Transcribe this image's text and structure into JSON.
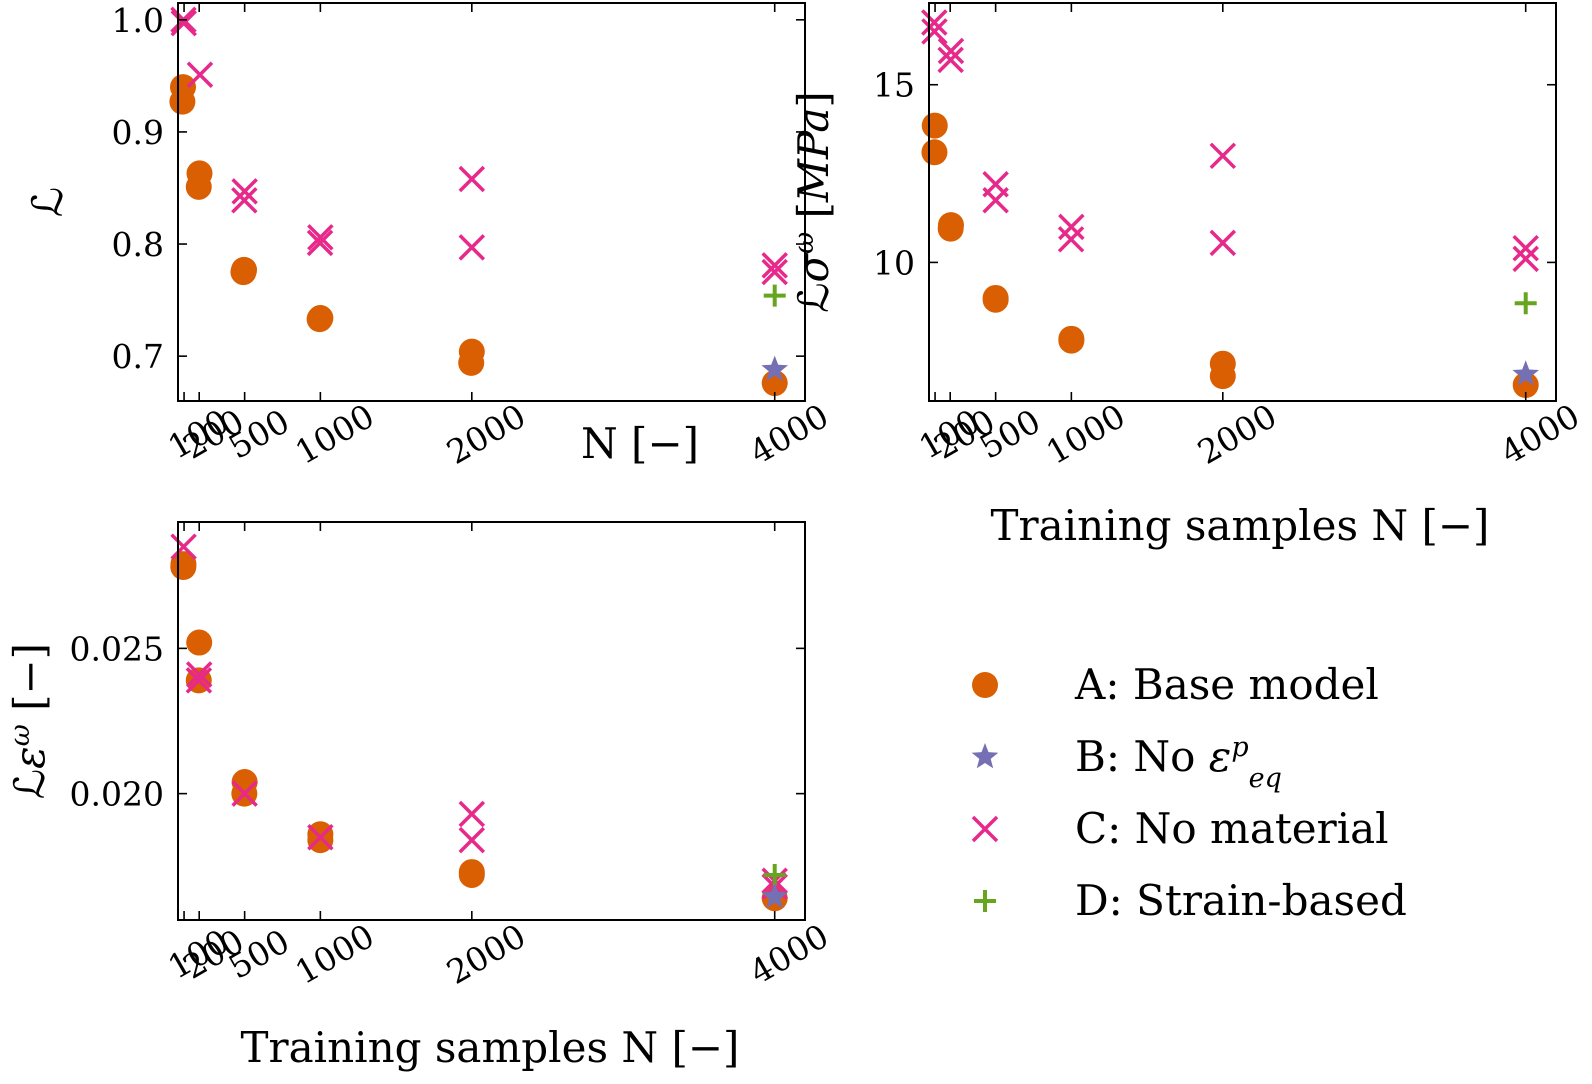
{
  "colors": {
    "A": "#d95f02",
    "B": "#7570b3",
    "C": "#e7298a",
    "D": "#66a61e"
  },
  "legend": {
    "placement": "lower-right (empty fourth panel)",
    "entries": [
      {
        "key": "A",
        "marker": "circle",
        "label_parts": [
          {
            "t": "A: Base model"
          }
        ]
      },
      {
        "key": "B",
        "marker": "star",
        "label_parts": [
          {
            "t": "B: No "
          },
          {
            "t": "ε",
            "italic": true
          },
          {
            "t": "p",
            "italic": true,
            "sup": true
          },
          {
            "t": "eq",
            "italic": true,
            "sub": true
          }
        ]
      },
      {
        "key": "C",
        "marker": "x",
        "label_parts": [
          {
            "t": "C: No material"
          }
        ]
      },
      {
        "key": "D",
        "marker": "plus",
        "label_parts": [
          {
            "t": "D: Strain-based"
          }
        ]
      }
    ]
  },
  "chart_data": [
    {
      "type": "scatter",
      "panel": "top-left",
      "title": "",
      "xlabel": "N [−]",
      "ylabel_parts": [
        {
          "t": "ℒ"
        }
      ],
      "x_ticks": [
        100,
        200,
        500,
        1000,
        2000,
        4000
      ],
      "y_ticks": [
        0.7,
        0.8,
        0.9,
        1.0
      ],
      "y_tick_labels": [
        "0.7",
        "0.8",
        "0.9",
        "1.0"
      ],
      "xlim": [
        60,
        4200
      ],
      "ylim": [
        0.66,
        1.015
      ],
      "grid": false,
      "series": [
        {
          "key": "A",
          "points": [
            [
              93,
              0.94
            ],
            [
              89,
              0.927
            ],
            [
              202,
              0.863
            ],
            [
              197,
              0.851
            ],
            [
              496,
              0.777
            ],
            [
              492,
              0.775
            ],
            [
              1000,
              0.734
            ],
            [
              995,
              0.733
            ],
            [
              2000,
              0.704
            ],
            [
              1996,
              0.694
            ],
            [
              4000,
              0.676
            ]
          ]
        },
        {
          "key": "B",
          "points": [
            [
              4000,
              0.688
            ]
          ]
        },
        {
          "key": "C",
          "points": [
            [
              96,
              1.0
            ],
            [
              98,
              0.997
            ],
            [
              205,
              0.951
            ],
            [
              500,
              0.847
            ],
            [
              498,
              0.839
            ],
            [
              1000,
              0.806
            ],
            [
              998,
              0.801
            ],
            [
              2000,
              0.858
            ],
            [
              2000,
              0.797
            ],
            [
              4000,
              0.781
            ],
            [
              4000,
              0.775
            ]
          ]
        },
        {
          "key": "D",
          "points": [
            [
              4000,
              0.754
            ]
          ]
        }
      ]
    },
    {
      "type": "scatter",
      "panel": "top-right",
      "title": "",
      "xlabel": "Training samples N [−]",
      "ylabel_parts": [
        {
          "t": "ℒ"
        },
        {
          "t": "σ",
          "italic": true
        },
        {
          "t": "ω",
          "italic": true,
          "sup": true
        },
        {
          "t": " ["
        },
        {
          "t": "MPa",
          "italic": true
        },
        {
          "t": "]"
        }
      ],
      "x_ticks": [
        100,
        200,
        500,
        1000,
        2000,
        4000
      ],
      "y_ticks": [
        10,
        15
      ],
      "y_tick_labels": [
        "10",
        "15"
      ],
      "xlim": [
        60,
        4200
      ],
      "ylim": [
        6.1,
        17.3
      ],
      "grid": false,
      "series": [
        {
          "key": "A",
          "points": [
            [
              98,
              13.85
            ],
            [
              96,
              13.1
            ],
            [
              205,
              11.05
            ],
            [
              203,
              10.95
            ],
            [
              500,
              9.0
            ],
            [
              500,
              8.95
            ],
            [
              1000,
              7.85
            ],
            [
              1000,
              7.8
            ],
            [
              2000,
              7.15
            ],
            [
              2000,
              6.8
            ],
            [
              4000,
              6.55
            ]
          ]
        },
        {
          "key": "B",
          "points": [
            [
              4000,
              6.85
            ]
          ]
        },
        {
          "key": "C",
          "points": [
            [
              95,
              16.75
            ],
            [
              96,
              16.5
            ],
            [
              205,
              15.95
            ],
            [
              203,
              15.7
            ],
            [
              500,
              12.2
            ],
            [
              500,
              11.75
            ],
            [
              1000,
              11.0
            ],
            [
              998,
              10.65
            ],
            [
              2000,
              13.0
            ],
            [
              2000,
              10.55
            ],
            [
              4000,
              10.4
            ],
            [
              4000,
              10.1
            ]
          ]
        },
        {
          "key": "D",
          "points": [
            [
              4000,
              8.85
            ]
          ]
        }
      ]
    },
    {
      "type": "scatter",
      "panel": "bottom-left",
      "title": "",
      "xlabel": "Training samples N [−]",
      "ylabel_parts": [
        {
          "t": "ℒ"
        },
        {
          "t": "ε",
          "italic": true
        },
        {
          "t": "ω",
          "italic": true,
          "sup": true
        },
        {
          "t": " [−]"
        }
      ],
      "x_ticks": [
        100,
        200,
        500,
        1000,
        2000,
        4000
      ],
      "y_ticks": [
        0.02,
        0.025
      ],
      "y_tick_labels": [
        "0.020",
        "0.025"
      ],
      "xlim": [
        60,
        4200
      ],
      "ylim": [
        0.01565,
        0.02935
      ],
      "grid": false,
      "series": [
        {
          "key": "A",
          "points": [
            [
              96,
              0.0279
            ],
            [
              95,
              0.0278
            ],
            [
              200,
              0.0252
            ],
            [
              197,
              0.0239
            ],
            [
              500,
              0.0204
            ],
            [
              498,
              0.02
            ],
            [
              1000,
              0.0186
            ],
            [
              1000,
              0.0184
            ],
            [
              2000,
              0.0173
            ],
            [
              2000,
              0.0172
            ],
            [
              4000,
              0.0164
            ]
          ]
        },
        {
          "key": "B",
          "points": [
            [
              4000,
              0.01645
            ]
          ]
        },
        {
          "key": "C",
          "points": [
            [
              97,
              0.0285
            ],
            [
              200,
              0.0241
            ],
            [
              198,
              0.0239
            ],
            [
              500,
              0.02
            ],
            [
              1000,
              0.0185
            ],
            [
              2000,
              0.0193
            ],
            [
              2000,
              0.0184
            ],
            [
              4000,
              0.017
            ],
            [
              4000,
              0.0168
            ]
          ]
        },
        {
          "key": "D",
          "points": [
            [
              4000,
              0.0172
            ]
          ]
        }
      ]
    }
  ]
}
